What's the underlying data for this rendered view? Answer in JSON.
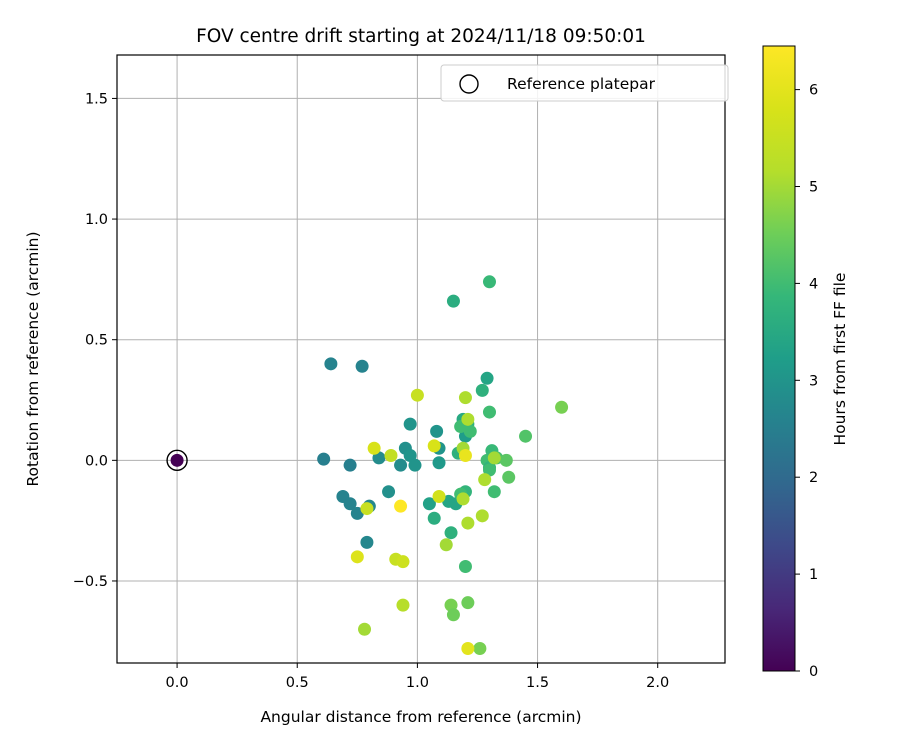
{
  "chart_data": {
    "type": "scatter",
    "title": "FOV centre drift starting at 2024/11/18 09:50:01",
    "xlabel": "Angular distance from reference (arcmin)",
    "ylabel": "Rotation from reference (arcmin)",
    "xlim": [
      -0.25,
      2.28
    ],
    "ylim": [
      -0.84,
      1.68
    ],
    "xticks": [
      0.0,
      0.5,
      1.0,
      1.5,
      2.0
    ],
    "yticks": [
      -0.5,
      0.0,
      0.5,
      1.0,
      1.5
    ],
    "xtick_labels": [
      "0.0",
      "0.5",
      "1.0",
      "1.5",
      "2.0"
    ],
    "ytick_labels": [
      "−0.5",
      "0.0",
      "0.5",
      "1.0",
      "1.5"
    ],
    "grid": true,
    "legend": {
      "location": "top-right",
      "entries": [
        "Reference platepar"
      ]
    },
    "reference_point": {
      "x": 0.0,
      "y": 0.0,
      "hours": 0.0,
      "marker": "open-circle"
    },
    "colorbar": {
      "label": "Hours from first FF file",
      "colormap": "viridis",
      "min": 0,
      "max": 6.45,
      "ticks": [
        0,
        1,
        2,
        3,
        4,
        5,
        6
      ],
      "tick_labels": [
        "0",
        "1",
        "2",
        "3",
        "4",
        "5",
        "6"
      ]
    },
    "points": [
      {
        "x": 0.0,
        "y": 0.0,
        "h": 0.0
      },
      {
        "x": 0.61,
        "y": 0.005,
        "h": 2.5
      },
      {
        "x": 0.64,
        "y": 0.4,
        "h": 2.6
      },
      {
        "x": 0.72,
        "y": -0.02,
        "h": 2.5
      },
      {
        "x": 0.77,
        "y": 0.39,
        "h": 2.6
      },
      {
        "x": 0.69,
        "y": -0.15,
        "h": 2.6
      },
      {
        "x": 0.72,
        "y": -0.18,
        "h": 2.6
      },
      {
        "x": 0.75,
        "y": -0.22,
        "h": 2.6
      },
      {
        "x": 0.8,
        "y": -0.19,
        "h": 2.7
      },
      {
        "x": 0.79,
        "y": -0.34,
        "h": 2.7
      },
      {
        "x": 0.84,
        "y": 0.01,
        "h": 2.8
      },
      {
        "x": 0.88,
        "y": -0.13,
        "h": 2.9
      },
      {
        "x": 0.93,
        "y": -0.02,
        "h": 2.8
      },
      {
        "x": 0.95,
        "y": 0.05,
        "h": 2.9
      },
      {
        "x": 0.97,
        "y": 0.02,
        "h": 3.0
      },
      {
        "x": 0.99,
        "y": -0.02,
        "h": 3.0
      },
      {
        "x": 0.97,
        "y": 0.15,
        "h": 3.0
      },
      {
        "x": 1.08,
        "y": 0.12,
        "h": 3.0
      },
      {
        "x": 1.09,
        "y": 0.05,
        "h": 3.0
      },
      {
        "x": 1.09,
        "y": -0.01,
        "h": 3.1
      },
      {
        "x": 1.05,
        "y": -0.18,
        "h": 3.3
      },
      {
        "x": 1.07,
        "y": -0.24,
        "h": 3.6
      },
      {
        "x": 1.13,
        "y": -0.17,
        "h": 3.4
      },
      {
        "x": 1.16,
        "y": -0.18,
        "h": 3.4
      },
      {
        "x": 1.14,
        "y": -0.3,
        "h": 3.7
      },
      {
        "x": 1.15,
        "y": 0.66,
        "h": 3.6
      },
      {
        "x": 1.19,
        "y": 0.17,
        "h": 3.5
      },
      {
        "x": 1.2,
        "y": 0.1,
        "h": 3.2
      },
      {
        "x": 1.21,
        "y": 0.15,
        "h": 3.7
      },
      {
        "x": 1.22,
        "y": 0.12,
        "h": 4.0
      },
      {
        "x": 1.17,
        "y": 0.03,
        "h": 3.7
      },
      {
        "x": 1.18,
        "y": 0.14,
        "h": 4.0
      },
      {
        "x": 1.2,
        "y": -0.13,
        "h": 3.8
      },
      {
        "x": 1.18,
        "y": -0.14,
        "h": 4.0
      },
      {
        "x": 1.2,
        "y": -0.44,
        "h": 4.0
      },
      {
        "x": 1.27,
        "y": 0.29,
        "h": 3.7
      },
      {
        "x": 1.29,
        "y": 0.34,
        "h": 3.4
      },
      {
        "x": 1.3,
        "y": 0.74,
        "h": 3.9
      },
      {
        "x": 1.3,
        "y": 0.2,
        "h": 4.0
      },
      {
        "x": 1.29,
        "y": 0.0,
        "h": 4.0
      },
      {
        "x": 1.31,
        "y": 0.04,
        "h": 3.9
      },
      {
        "x": 1.3,
        "y": -0.03,
        "h": 3.8
      },
      {
        "x": 1.3,
        "y": -0.04,
        "h": 4.0
      },
      {
        "x": 1.32,
        "y": -0.13,
        "h": 4.0
      },
      {
        "x": 1.33,
        "y": 0.01,
        "h": 4.1
      },
      {
        "x": 1.37,
        "y": 0.0,
        "h": 4.3
      },
      {
        "x": 1.38,
        "y": -0.07,
        "h": 4.3
      },
      {
        "x": 1.45,
        "y": 0.1,
        "h": 4.2
      },
      {
        "x": 1.6,
        "y": 0.22,
        "h": 4.6
      },
      {
        "x": 1.21,
        "y": -0.59,
        "h": 4.5
      },
      {
        "x": 1.14,
        "y": -0.6,
        "h": 4.6
      },
      {
        "x": 1.15,
        "y": -0.64,
        "h": 4.5
      },
      {
        "x": 1.26,
        "y": -0.78,
        "h": 4.6
      },
      {
        "x": 1.2,
        "y": 0.26,
        "h": 5.1
      },
      {
        "x": 1.21,
        "y": 0.17,
        "h": 5.1
      },
      {
        "x": 1.19,
        "y": 0.05,
        "h": 5.0
      },
      {
        "x": 1.12,
        "y": -0.35,
        "h": 5.0
      },
      {
        "x": 1.19,
        "y": -0.16,
        "h": 5.1
      },
      {
        "x": 1.21,
        "y": -0.26,
        "h": 5.1
      },
      {
        "x": 1.27,
        "y": -0.23,
        "h": 5.1
      },
      {
        "x": 1.28,
        "y": -0.08,
        "h": 5.1
      },
      {
        "x": 1.32,
        "y": 0.01,
        "h": 5.0
      },
      {
        "x": 1.0,
        "y": 0.27,
        "h": 5.5
      },
      {
        "x": 0.89,
        "y": 0.02,
        "h": 5.4
      },
      {
        "x": 0.82,
        "y": 0.05,
        "h": 5.8
      },
      {
        "x": 0.79,
        "y": -0.2,
        "h": 5.5
      },
      {
        "x": 0.91,
        "y": -0.41,
        "h": 5.5
      },
      {
        "x": 0.94,
        "y": -0.42,
        "h": 5.6
      },
      {
        "x": 0.94,
        "y": -0.6,
        "h": 5.2
      },
      {
        "x": 0.78,
        "y": -0.7,
        "h": 5.0
      },
      {
        "x": 0.75,
        "y": -0.4,
        "h": 5.9
      },
      {
        "x": 1.07,
        "y": 0.06,
        "h": 5.8
      },
      {
        "x": 1.09,
        "y": -0.15,
        "h": 5.7
      },
      {
        "x": 1.2,
        "y": 0.02,
        "h": 6.1
      },
      {
        "x": 1.21,
        "y": -0.78,
        "h": 6.0
      },
      {
        "x": 0.93,
        "y": -0.19,
        "h": 6.45
      }
    ]
  }
}
